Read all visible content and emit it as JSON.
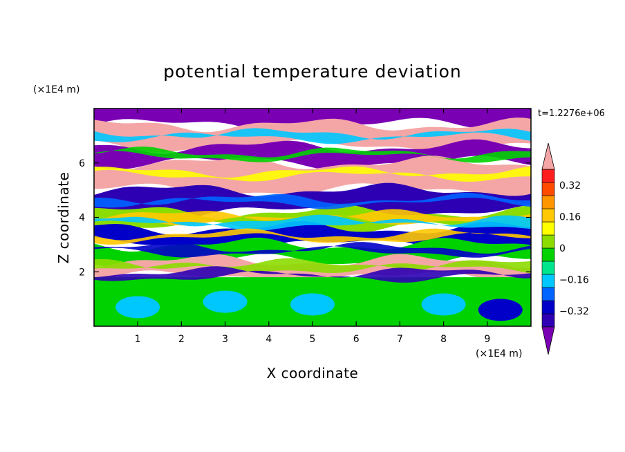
{
  "chart_data": {
    "type": "heatmap",
    "title": "potential temperature deviation",
    "xlabel": "X coordinate",
    "ylabel": "Z coordinate",
    "x_unit": "(×1E4 m)",
    "y_unit": "(×1E4 m)",
    "time_label": "t=1.2276e+06",
    "xlim": [
      0,
      10
    ],
    "ylim": [
      0,
      8
    ],
    "x_ticks": [
      "1",
      "2",
      "3",
      "4",
      "5",
      "6",
      "7",
      "8",
      "9"
    ],
    "y_ticks": [
      "2",
      "4",
      "6"
    ],
    "colorbar": {
      "min": -0.4,
      "max": 0.4,
      "step": 0.08,
      "extend": "both",
      "tick_labels": [
        "0.32",
        "0.16",
        "0",
        "−0.16",
        "−0.32"
      ],
      "tick_values": [
        0.32,
        0.16,
        0,
        -0.16,
        -0.32
      ],
      "colors": [
        "#7a00b4",
        "#2d00b4",
        "#0000c8",
        "#0064ff",
        "#00c8ff",
        "#00e68c",
        "#00d200",
        "#8cdc00",
        "#ffff00",
        "#ffc800",
        "#ff9600",
        "#ff4b00",
        "#ff1e1e",
        "#f4a6a6"
      ]
    },
    "layers": [
      {
        "z_range": [
          7.4,
          8.0
        ],
        "value": -0.45
      },
      {
        "z_range": [
          6.6,
          7.4
        ],
        "value": 0.45
      },
      {
        "z_range": [
          6.0,
          6.6
        ],
        "value": -0.45
      },
      {
        "z_range": [
          5.0,
          6.0
        ],
        "value": 0.45
      },
      {
        "z_range": [
          4.2,
          5.0
        ],
        "value": -0.35
      },
      {
        "z_range": [
          3.6,
          4.2
        ],
        "value": 0.12
      },
      {
        "z_range": [
          3.0,
          3.6
        ],
        "value": -0.3
      },
      {
        "z_range": [
          2.4,
          3.0
        ],
        "value": 0.05
      },
      {
        "z_range": [
          1.8,
          2.4
        ],
        "value": 0.45
      },
      {
        "z_range": [
          0.0,
          1.8
        ],
        "value": 0.0
      }
    ]
  }
}
